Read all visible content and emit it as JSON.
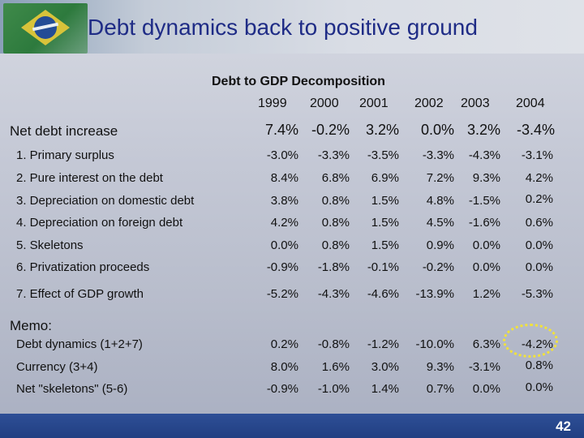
{
  "slide": {
    "title": "Debt dynamics back to positive ground",
    "page_number": "42"
  },
  "table": {
    "title": "Debt to GDP Decomposition",
    "years": [
      "1999",
      "2000",
      "2001",
      "2002",
      "2003",
      "2004"
    ],
    "rows": [
      {
        "label": "Net debt increase",
        "values": [
          "7.4%",
          "-0.2%",
          "3.2%",
          "0.0%",
          "3.2%",
          "-3.4%"
        ]
      },
      {
        "label": "1. Primary surplus",
        "values": [
          "-3.0%",
          "-3.3%",
          "-3.5%",
          "-3.3%",
          "-4.3%",
          "-3.1%"
        ]
      },
      {
        "label": "2. Pure interest on the debt",
        "values": [
          "8.4%",
          "6.8%",
          "6.9%",
          "7.2%",
          "9.3%",
          "4.2%"
        ]
      },
      {
        "label": "3. Depreciation on domestic debt",
        "values": [
          "3.8%",
          "0.8%",
          "1.5%",
          "4.8%",
          "-1.5%",
          "0.2%"
        ]
      },
      {
        "label": "4. Depreciation on foreign debt",
        "values": [
          "4.2%",
          "0.8%",
          "1.5%",
          "4.5%",
          "-1.6%",
          "0.6%"
        ]
      },
      {
        "label": "5. Skeletons",
        "values": [
          "0.0%",
          "0.8%",
          "1.5%",
          "0.9%",
          "0.0%",
          "0.0%"
        ]
      },
      {
        "label": "6. Privatization proceeds",
        "values": [
          "-0.9%",
          "-1.8%",
          "-0.1%",
          "-0.2%",
          "0.0%",
          "0.0%"
        ]
      },
      {
        "label": "7. Effect of GDP growth",
        "values": [
          "-5.2%",
          "-4.3%",
          "-4.6%",
          "-13.9%",
          "1.2%",
          "-5.3%"
        ]
      }
    ],
    "memo_label": "Memo:",
    "memo_rows": [
      {
        "label": "Debt dynamics (1+2+7)",
        "values": [
          "0.2%",
          "-0.8%",
          "-1.2%",
          "-10.0%",
          "6.3%",
          "-4.2%"
        ]
      },
      {
        "label": "Currency (3+4)",
        "values": [
          "8.0%",
          "1.6%",
          "3.0%",
          "9.3%",
          "-3.1%",
          "0.8%"
        ]
      },
      {
        "label": "Net \"skeletons\" (5-6)",
        "values": [
          "-0.9%",
          "-1.0%",
          "1.4%",
          "0.7%",
          "0.0%",
          "0.0%"
        ]
      }
    ]
  },
  "colors": {
    "title": "#1f2c86",
    "bottom_bar": "#2e4f96",
    "highlight": "#f2e23a"
  }
}
